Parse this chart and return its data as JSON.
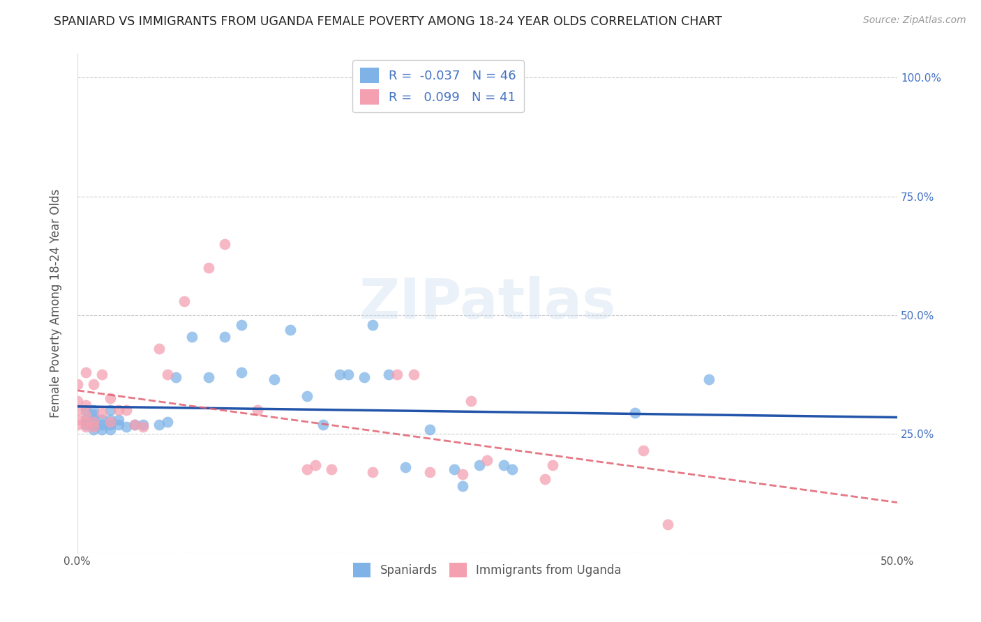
{
  "title": "SPANIARD VS IMMIGRANTS FROM UGANDA FEMALE POVERTY AMONG 18-24 YEAR OLDS CORRELATION CHART",
  "source": "Source: ZipAtlas.com",
  "xlabel": "",
  "ylabel": "Female Poverty Among 18-24 Year Olds",
  "xlim": [
    0.0,
    0.5
  ],
  "ylim": [
    0.0,
    1.05
  ],
  "xticks": [
    0.0,
    0.1,
    0.2,
    0.3,
    0.4,
    0.5
  ],
  "xticklabels": [
    "0.0%",
    "",
    "",
    "",
    "",
    "50.0%"
  ],
  "yticks": [
    0.0,
    0.25,
    0.5,
    0.75,
    1.0
  ],
  "ytick_left_labels": [
    "",
    "",
    "",
    "",
    ""
  ],
  "ytick_right_labels": [
    "",
    "25.0%",
    "50.0%",
    "75.0%",
    "100.0%"
  ],
  "spaniard_color": "#7fb3e8",
  "uganda_color": "#f4a0b0",
  "spaniard_trendline_color": "#2255aa",
  "uganda_trendline_color": "#e06070",
  "spaniard_R": -0.037,
  "spaniard_N": 46,
  "uganda_R": 0.099,
  "uganda_N": 41,
  "legend_label_spaniard": "Spaniards",
  "legend_label_uganda": "Immigrants from Uganda",
  "watermark": "ZIPatlas",
  "spaniard_x": [
    0.005,
    0.005,
    0.005,
    0.01,
    0.01,
    0.01,
    0.01,
    0.01,
    0.015,
    0.015,
    0.015,
    0.02,
    0.02,
    0.02,
    0.02,
    0.025,
    0.025,
    0.03,
    0.035,
    0.04,
    0.05,
    0.055,
    0.06,
    0.07,
    0.08,
    0.09,
    0.1,
    0.1,
    0.12,
    0.13,
    0.14,
    0.15,
    0.16,
    0.165,
    0.175,
    0.18,
    0.19,
    0.2,
    0.215,
    0.23,
    0.235,
    0.245,
    0.26,
    0.265,
    0.34,
    0.385
  ],
  "spaniard_y": [
    0.27,
    0.28,
    0.3,
    0.26,
    0.27,
    0.28,
    0.29,
    0.3,
    0.26,
    0.27,
    0.28,
    0.26,
    0.27,
    0.28,
    0.3,
    0.27,
    0.28,
    0.265,
    0.27,
    0.27,
    0.27,
    0.275,
    0.37,
    0.455,
    0.37,
    0.455,
    0.38,
    0.48,
    0.365,
    0.47,
    0.33,
    0.27,
    0.375,
    0.375,
    0.37,
    0.48,
    0.375,
    0.18,
    0.26,
    0.175,
    0.14,
    0.185,
    0.185,
    0.175,
    0.295,
    0.365
  ],
  "uganda_x": [
    0.0,
    0.0,
    0.0,
    0.0,
    0.0,
    0.005,
    0.005,
    0.005,
    0.005,
    0.005,
    0.01,
    0.01,
    0.01,
    0.015,
    0.015,
    0.02,
    0.02,
    0.025,
    0.03,
    0.035,
    0.04,
    0.05,
    0.055,
    0.065,
    0.08,
    0.09,
    0.11,
    0.14,
    0.145,
    0.155,
    0.18,
    0.195,
    0.205,
    0.215,
    0.235,
    0.24,
    0.25,
    0.285,
    0.29,
    0.345,
    0.36
  ],
  "uganda_y": [
    0.27,
    0.28,
    0.3,
    0.32,
    0.355,
    0.265,
    0.275,
    0.29,
    0.31,
    0.38,
    0.265,
    0.275,
    0.355,
    0.295,
    0.375,
    0.275,
    0.325,
    0.3,
    0.3,
    0.27,
    0.265,
    0.43,
    0.375,
    0.53,
    0.6,
    0.65,
    0.3,
    0.175,
    0.185,
    0.175,
    0.17,
    0.375,
    0.375,
    0.17,
    0.165,
    0.32,
    0.195,
    0.155,
    0.185,
    0.215,
    0.06
  ]
}
